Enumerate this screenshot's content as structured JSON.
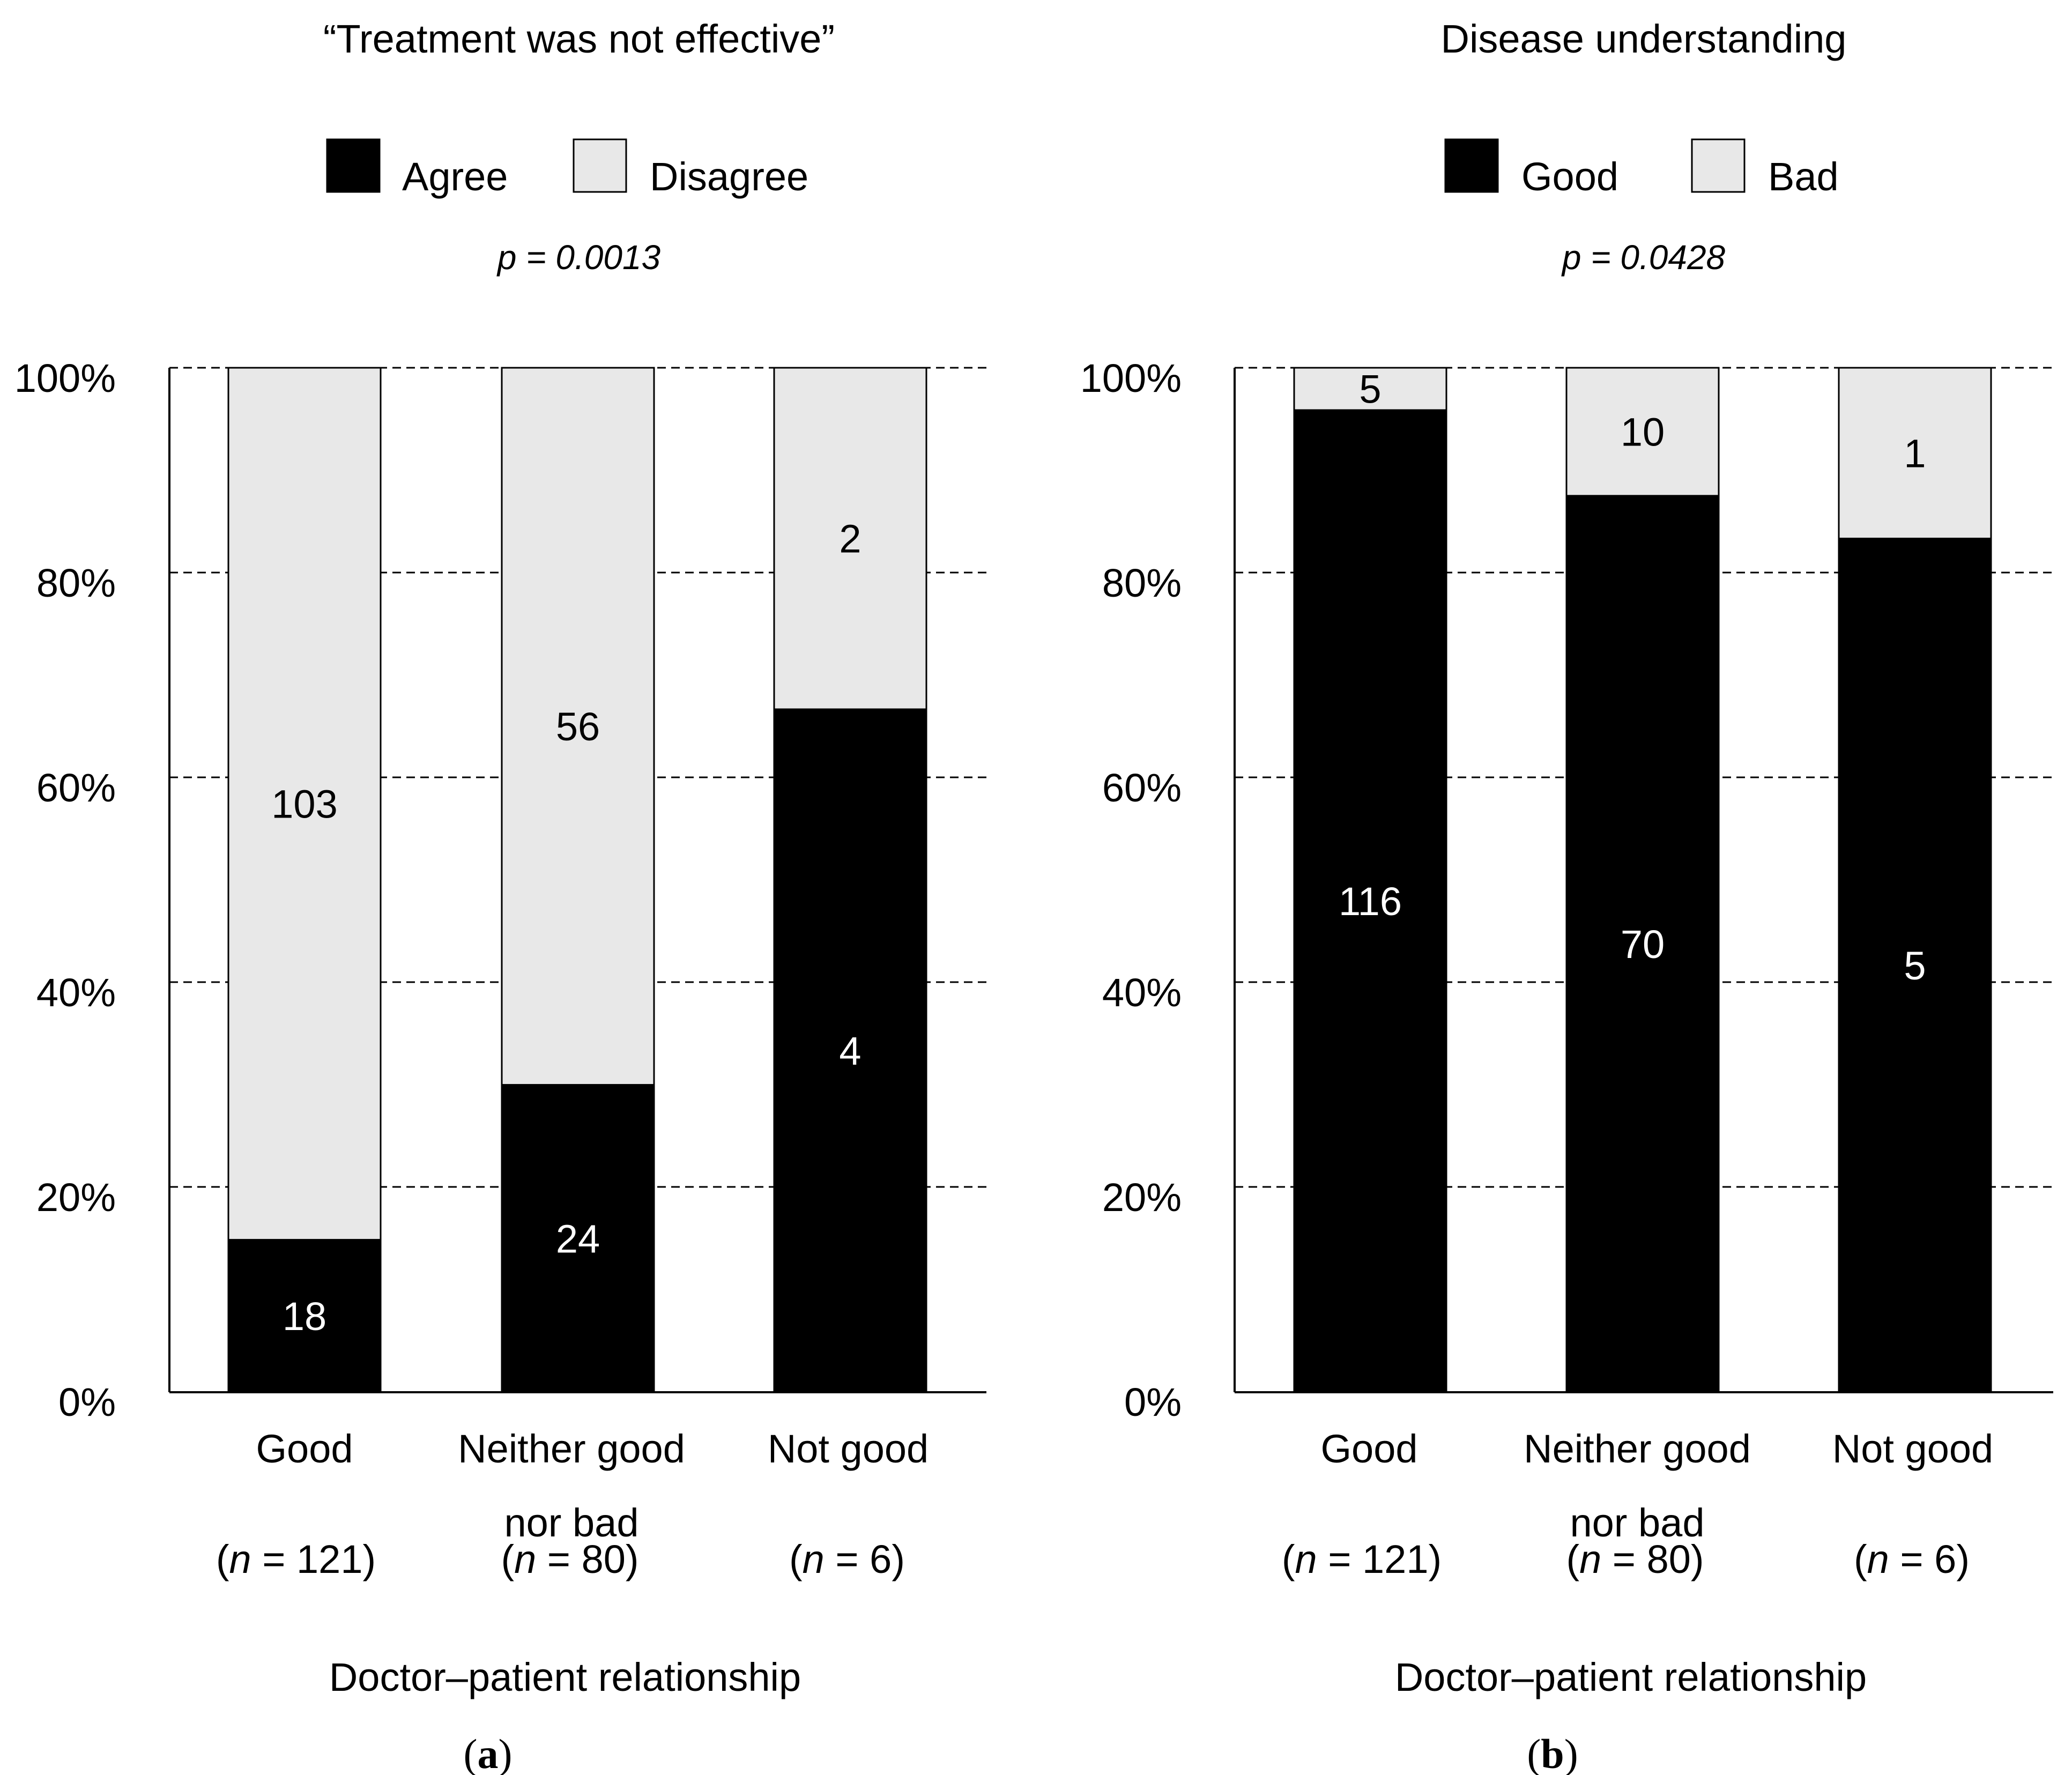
{
  "colors": {
    "agree": "#000000",
    "disagree": "#e8e8e8",
    "stroke": "#000000",
    "text": "#000000",
    "inside_dark_text": "#ffffff"
  },
  "axis_xlabel": "Doctor–patient relationship",
  "chart_data": [
    {
      "type": "bar",
      "stacked": "percent",
      "panel_label": "a",
      "title": "“Treatment was not effective”",
      "p_value": "p = 0.0013",
      "xlabel": "Doctor–patient relationship",
      "ylabel": "",
      "ylim": [
        0,
        100
      ],
      "yticks": [
        "0%",
        "20%",
        "40%",
        "60%",
        "80%",
        "100%"
      ],
      "grid": true,
      "legend_position": "top",
      "categories": [
        {
          "line1": "Good",
          "line2": "",
          "n_label": "121"
        },
        {
          "line1": "Neither good",
          "line2": "nor bad",
          "n_label": "80"
        },
        {
          "line1": "Not good",
          "line2": "",
          "n_label": "6"
        }
      ],
      "series": [
        {
          "name": "Agree",
          "values": [
            18,
            24,
            4
          ]
        },
        {
          "name": "Disagree",
          "values": [
            103,
            56,
            2
          ]
        }
      ]
    },
    {
      "type": "bar",
      "stacked": "percent",
      "panel_label": "b",
      "title": "Disease understanding",
      "p_value": "p = 0.0428",
      "xlabel": "Doctor–patient relationship",
      "ylabel": "",
      "ylim": [
        0,
        100
      ],
      "yticks": [
        "0%",
        "20%",
        "40%",
        "60%",
        "80%",
        "100%"
      ],
      "grid": true,
      "legend_position": "top",
      "categories": [
        {
          "line1": "Good",
          "line2": "",
          "n_label": "121"
        },
        {
          "line1": "Neither good",
          "line2": "nor bad",
          "n_label": "80"
        },
        {
          "line1": "Not good",
          "line2": "",
          "n_label": "6"
        }
      ],
      "series": [
        {
          "name": "Good",
          "values": [
            116,
            70,
            5
          ]
        },
        {
          "name": "Bad",
          "values": [
            5,
            10,
            1
          ]
        }
      ]
    }
  ]
}
